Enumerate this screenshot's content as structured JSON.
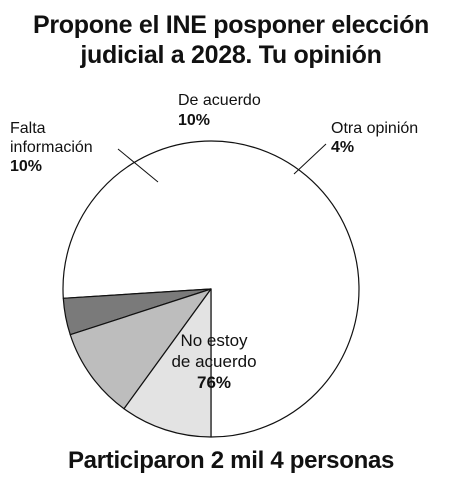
{
  "title_lines": [
    "Propone el INE posponer elección",
    "judicial a 2028. Tu opinión"
  ],
  "footer": "Participaron 2 mil 4 personas",
  "chart_data": {
    "type": "pie",
    "title": "Propone el INE posponer elección judicial a 2028. Tu opinión",
    "start_angle_deg": 0,
    "direction": "counterclockwise",
    "slices": [
      {
        "label": [
          "No estoy",
          "de acuerdo"
        ],
        "value_label": "76%",
        "value": 76,
        "color": "#ffffff"
      },
      {
        "label": [
          "Otra opinión"
        ],
        "value_label": "4%",
        "value": 4,
        "color": "#7a7a7a"
      },
      {
        "label": [
          "De acuerdo"
        ],
        "value_label": "10%",
        "value": 10,
        "color": "#bdbdbd"
      },
      {
        "label": [
          "Falta",
          "información"
        ],
        "value_label": "10%",
        "value": 10,
        "color": "#e3e3e3"
      }
    ]
  }
}
